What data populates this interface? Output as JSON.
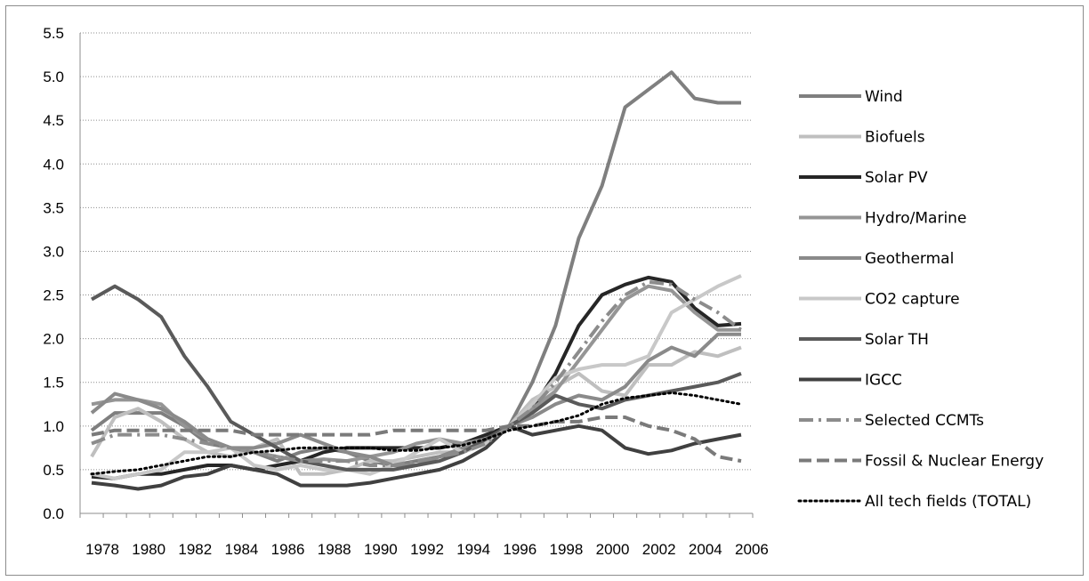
{
  "chart_data": {
    "type": "line",
    "title": "",
    "xlabel": "",
    "ylabel": "",
    "ylim": [
      0,
      5.5
    ],
    "yticks": [
      "0.0",
      "0.5",
      "1.0",
      "1.5",
      "2.0",
      "2.5",
      "3.0",
      "3.5",
      "4.0",
      "4.5",
      "5.0",
      "5.5"
    ],
    "x": [
      1978,
      1979,
      1980,
      1981,
      1982,
      1983,
      1984,
      1985,
      1986,
      1987,
      1988,
      1989,
      1990,
      1991,
      1992,
      1993,
      1994,
      1995,
      1996,
      1997,
      1998,
      1999,
      2000,
      2001,
      2002,
      2003,
      2004,
      2005,
      2006
    ],
    "xtick_labels": [
      "1978",
      "1980",
      "1982",
      "1984",
      "1986",
      "1988",
      "1990",
      "1992",
      "1994",
      "1996",
      "1998",
      "2000",
      "2002",
      "2004",
      "2006"
    ],
    "grid": "horizontal dotted",
    "legend_position": "right",
    "series": [
      {
        "name": "Wind",
        "color": "#7f7f7f",
        "dash": "solid",
        "values": [
          0.95,
          1.15,
          1.15,
          1.15,
          1.0,
          0.8,
          0.75,
          0.7,
          0.6,
          0.7,
          0.75,
          0.7,
          0.6,
          0.55,
          0.6,
          0.65,
          0.7,
          0.85,
          1.0,
          1.5,
          2.15,
          3.15,
          3.75,
          4.65,
          4.85,
          5.05,
          4.75,
          4.7,
          4.7
        ]
      },
      {
        "name": "Biofuels",
        "color": "#bfbfbf",
        "dash": "solid",
        "values": [
          0.65,
          1.1,
          1.2,
          1.05,
          0.85,
          0.7,
          0.65,
          0.75,
          0.85,
          0.45,
          0.45,
          0.5,
          0.6,
          0.6,
          0.65,
          0.7,
          0.7,
          0.8,
          1.0,
          1.3,
          1.45,
          1.6,
          1.4,
          1.35,
          1.7,
          1.7,
          1.85,
          1.8,
          1.9
        ]
      },
      {
        "name": "Solar PV",
        "color": "#262626",
        "dash": "solid",
        "values": [
          0.42,
          0.4,
          0.45,
          0.45,
          0.5,
          0.55,
          0.55,
          0.5,
          0.55,
          0.6,
          0.7,
          0.75,
          0.75,
          0.75,
          0.75,
          0.75,
          0.8,
          0.9,
          1.0,
          1.2,
          1.6,
          2.15,
          2.5,
          2.62,
          2.7,
          2.65,
          2.35,
          2.15,
          2.17
        ]
      },
      {
        "name": "Hydro/Marine",
        "color": "#959595",
        "dash": "solid",
        "values": [
          1.25,
          1.3,
          1.3,
          1.25,
          1.0,
          0.85,
          0.75,
          0.7,
          0.65,
          0.6,
          0.62,
          0.6,
          0.65,
          0.7,
          0.8,
          0.85,
          0.8,
          0.85,
          1.0,
          1.2,
          1.4,
          1.75,
          2.1,
          2.45,
          2.6,
          2.55,
          2.3,
          2.1,
          2.1
        ]
      },
      {
        "name": "Geothermal",
        "color": "#8a8a8a",
        "dash": "solid",
        "values": [
          1.15,
          1.37,
          1.3,
          1.2,
          1.05,
          0.85,
          0.75,
          0.75,
          0.8,
          0.9,
          0.8,
          0.7,
          0.65,
          0.55,
          0.55,
          0.65,
          0.75,
          0.8,
          1.0,
          1.1,
          1.25,
          1.35,
          1.3,
          1.45,
          1.75,
          1.9,
          1.8,
          2.05,
          2.05
        ]
      },
      {
        "name": "CO2 capture",
        "color": "#c8c8c8",
        "dash": "solid",
        "values": [
          0.45,
          0.4,
          0.45,
          0.5,
          0.7,
          0.7,
          0.75,
          0.55,
          0.5,
          0.55,
          0.5,
          0.5,
          0.45,
          0.55,
          0.7,
          0.85,
          0.7,
          0.8,
          1.0,
          1.25,
          1.55,
          1.65,
          1.7,
          1.7,
          1.8,
          2.3,
          2.45,
          2.6,
          2.72
        ]
      },
      {
        "name": "Solar TH",
        "color": "#5a5a5a",
        "dash": "solid",
        "values": [
          2.45,
          2.6,
          2.45,
          2.25,
          1.8,
          1.45,
          1.05,
          0.9,
          0.75,
          0.6,
          0.55,
          0.5,
          0.5,
          0.5,
          0.55,
          0.6,
          0.7,
          0.85,
          1.0,
          1.15,
          1.35,
          1.25,
          1.2,
          1.3,
          1.35,
          1.4,
          1.45,
          1.5,
          1.6
        ]
      },
      {
        "name": "IGCC",
        "color": "#404040",
        "dash": "solid",
        "values": [
          0.35,
          0.32,
          0.28,
          0.32,
          0.42,
          0.45,
          0.55,
          0.5,
          0.45,
          0.32,
          0.32,
          0.32,
          0.35,
          0.4,
          0.45,
          0.5,
          0.6,
          0.75,
          1.0,
          0.9,
          0.95,
          1.0,
          0.95,
          0.75,
          0.68,
          0.72,
          0.8,
          0.85,
          0.9
        ]
      },
      {
        "name": "Selected CCMTs",
        "color": "#8c8c8c",
        "dash": "dashdot",
        "values": [
          0.8,
          0.9,
          0.9,
          0.9,
          0.85,
          0.8,
          0.75,
          0.7,
          0.65,
          0.6,
          0.6,
          0.6,
          0.55,
          0.55,
          0.6,
          0.65,
          0.7,
          0.8,
          1.0,
          1.2,
          1.5,
          1.85,
          2.2,
          2.5,
          2.65,
          2.62,
          2.45,
          2.3,
          2.1
        ]
      },
      {
        "name": "Fossil & Nuclear Energy",
        "color": "#7a7a7a",
        "dash": "dash",
        "values": [
          0.9,
          0.95,
          0.95,
          0.95,
          0.95,
          0.95,
          0.95,
          0.9,
          0.9,
          0.9,
          0.9,
          0.9,
          0.9,
          0.95,
          0.95,
          0.95,
          0.95,
          0.95,
          1.0,
          1.0,
          1.05,
          1.05,
          1.1,
          1.1,
          1.0,
          0.95,
          0.85,
          0.65,
          0.6
        ]
      },
      {
        "name": "All tech fields (TOTAL)",
        "color": "#000000",
        "dash": "dot",
        "values": [
          0.45,
          0.48,
          0.5,
          0.55,
          0.6,
          0.65,
          0.65,
          0.7,
          0.72,
          0.75,
          0.75,
          0.75,
          0.75,
          0.72,
          0.72,
          0.75,
          0.78,
          0.85,
          0.95,
          1.0,
          1.05,
          1.12,
          1.25,
          1.32,
          1.35,
          1.38,
          1.35,
          1.3,
          1.25
        ]
      }
    ]
  }
}
